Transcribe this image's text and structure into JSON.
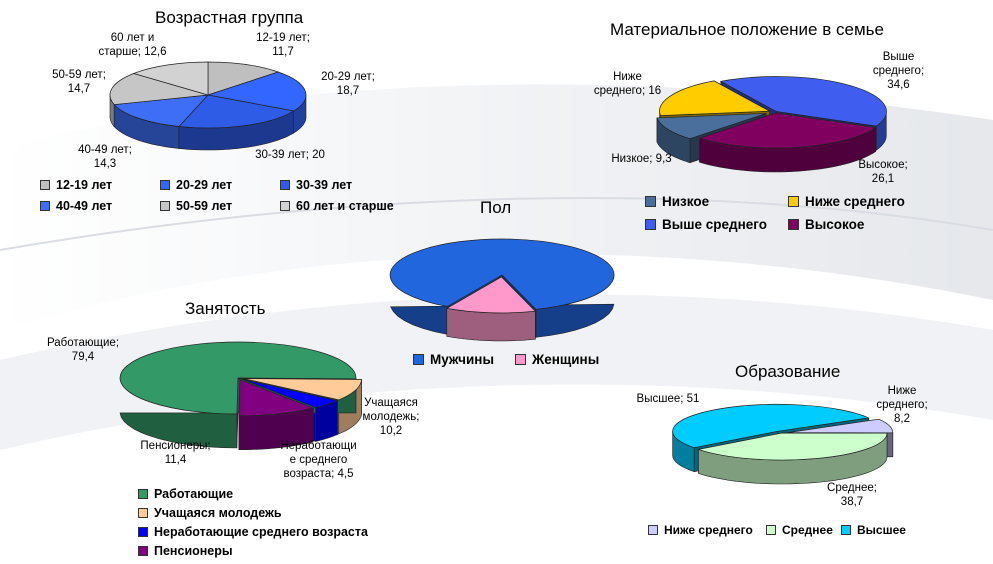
{
  "chart_data": [
    {
      "type": "pie",
      "title": "Возрастная группа",
      "slices": [
        {
          "name": "12-19 лет",
          "value": 11.7,
          "label": "12-19 лет;\n11,7",
          "color": "#bfbfbf"
        },
        {
          "name": "20-29 лет",
          "value": 18.7,
          "label": "20-29 лет;\n18,7",
          "color": "#3366ff"
        },
        {
          "name": "30-39 лет",
          "value": 20,
          "label": "30-39 лет; 20",
          "color": "#2e5ce6"
        },
        {
          "name": "40-49 лет",
          "value": 14.3,
          "label": "40-49 лет;\n14,3",
          "color": "#3e6ef5"
        },
        {
          "name": "50-59 лет",
          "value": 14.7,
          "label": "50-59 лет;\n14,7",
          "color": "#c6c6c6"
        },
        {
          "name": "60 лет и старше",
          "value": 12.6,
          "label": "60 лет и\nстарше; 12,6",
          "color": "#d2d2d2"
        }
      ]
    },
    {
      "type": "pie",
      "title": "Материальное положение в семье",
      "slices": [
        {
          "name": "Выше среднего",
          "value": 34.6,
          "label": "Выше\nсреднего;\n34,6",
          "color": "#3f5ef0"
        },
        {
          "name": "Высокое",
          "value": 26.1,
          "label": "Высокое;\n26,1",
          "color": "#800060"
        },
        {
          "name": "Низкое",
          "value": 9.3,
          "label": "Низкое; 9,3",
          "color": "#4a6f9c"
        },
        {
          "name": "Ниже среднего",
          "value": 16,
          "label": "Ниже\nсреднего; 16",
          "color": "#ffcc00"
        }
      ]
    },
    {
      "type": "pie",
      "title": "Пол",
      "slices": [
        {
          "name": "Мужчины",
          "value": 87,
          "label": "",
          "color": "#2266dd"
        },
        {
          "name": "Женщины",
          "value": 13,
          "label": "",
          "color": "#ff99cc"
        }
      ]
    },
    {
      "type": "pie",
      "title": "Занятость",
      "slices": [
        {
          "name": "Работающие",
          "value": 79.4,
          "label": "Работающие;\n79,4",
          "color": "#339966"
        },
        {
          "name": "Учащаяся молодежь",
          "value": 10.2,
          "label": "Учащаяся\nмолодежь;\n10,2",
          "color": "#ffcc99"
        },
        {
          "name": "Неработающие среднего возраста",
          "value": 4.5,
          "label": "Неработающи\nе среднего\nвозраста; 4,5",
          "color": "#0000ff"
        },
        {
          "name": "Пенсионеры",
          "value": 11.4,
          "label": "Пенсионеры;\n11,4",
          "color": "#800080"
        }
      ]
    },
    {
      "type": "pie",
      "title": "Образование",
      "slices": [
        {
          "name": "Ниже среднего",
          "value": 8.2,
          "label": "Ниже\nсреднего;\n8,2",
          "color": "#ccccff"
        },
        {
          "name": "Среднее",
          "value": 38.7,
          "label": "Среднее;\n38,7",
          "color": "#ccffcc"
        },
        {
          "name": "Высшее",
          "value": 51,
          "label": "Высшее; 51",
          "color": "#00ccff"
        }
      ]
    }
  ],
  "legends": {
    "age": [
      "12-19 лет",
      "20-29 лет",
      "30-39 лет",
      "40-49 лет",
      "50-59 лет",
      "60 лет и старше"
    ],
    "wealth": [
      "Низкое",
      "Ниже среднего",
      "Выше среднего",
      "Высокое"
    ],
    "gender": [
      "Мужчины",
      "Женщины"
    ],
    "employment": [
      "Работающие",
      "Учащаяся молодежь",
      "Неработающие среднего возраста",
      "Пенсионеры"
    ],
    "education": [
      "Ниже среднего",
      "Среднее",
      "Высшее"
    ]
  }
}
